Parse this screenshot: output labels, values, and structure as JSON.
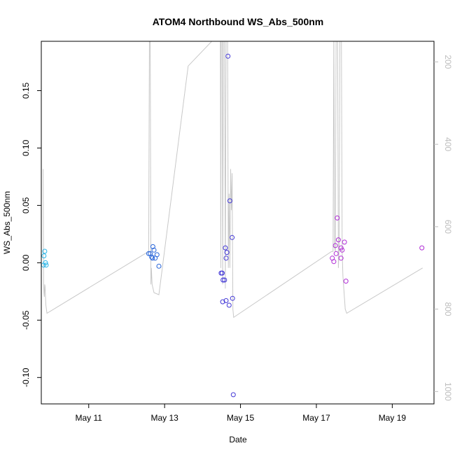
{
  "chart_data": {
    "type": "scatter",
    "title": "ATOM4 Northbound WS_Abs_500nm",
    "xlabel": "Date",
    "ylabel": "WS_Abs_500nm",
    "x_ticks": [
      "May 11",
      "May 13",
      "May 15",
      "May 17",
      "May 19"
    ],
    "x_tick_days": [
      11,
      13,
      15,
      17,
      19
    ],
    "xlim_days": [
      9.75,
      20.1
    ],
    "ylim": [
      -0.123,
      0.193
    ],
    "y_ticks": [
      "-0.10",
      "-0.05",
      "0.00",
      "0.05",
      "0.10",
      "0.15"
    ],
    "y_tick_values": [
      -0.1,
      -0.05,
      0.0,
      0.05,
      0.1,
      0.15
    ],
    "right_axis": {
      "ticks": [
        "200",
        "400",
        "600",
        "800",
        "1000"
      ],
      "tick_values": [
        200,
        400,
        600,
        800,
        1000
      ],
      "lim": [
        1030,
        150
      ],
      "color": "#bdbdbd",
      "note": "inverted secondary axis"
    },
    "grid": false,
    "series": [
      {
        "color": "#2bb6e8",
        "points": [
          {
            "x": 9.82,
            "y": 0.006
          },
          {
            "x": 9.84,
            "y": 0.01
          },
          {
            "x": 9.81,
            "y": -0.002
          },
          {
            "x": 9.88,
            "y": -0.002
          },
          {
            "x": 9.86,
            "y": 0.0
          }
        ]
      },
      {
        "color": "#2563d9",
        "points": [
          {
            "x": 12.58,
            "y": 0.008
          },
          {
            "x": 12.62,
            "y": 0.008
          },
          {
            "x": 12.66,
            "y": 0.005
          },
          {
            "x": 12.69,
            "y": 0.014
          },
          {
            "x": 12.72,
            "y": 0.011
          },
          {
            "x": 12.68,
            "y": 0.004
          },
          {
            "x": 12.75,
            "y": 0.004
          },
          {
            "x": 12.8,
            "y": 0.007
          },
          {
            "x": 12.85,
            "y": -0.003
          }
        ]
      },
      {
        "color": "#4338d6",
        "points": [
          {
            "x": 14.67,
            "y": 0.18
          },
          {
            "x": 14.72,
            "y": 0.054
          },
          {
            "x": 14.78,
            "y": 0.022
          },
          {
            "x": 14.6,
            "y": 0.013
          },
          {
            "x": 14.64,
            "y": 0.009
          },
          {
            "x": 14.62,
            "y": 0.004
          },
          {
            "x": 14.49,
            "y": -0.009
          },
          {
            "x": 14.52,
            "y": -0.009
          },
          {
            "x": 14.54,
            "y": -0.015
          },
          {
            "x": 14.58,
            "y": -0.015
          },
          {
            "x": 14.53,
            "y": -0.034
          },
          {
            "x": 14.62,
            "y": -0.033
          },
          {
            "x": 14.7,
            "y": -0.037
          },
          {
            "x": 14.79,
            "y": -0.031
          },
          {
            "x": 14.81,
            "y": -0.115
          }
        ]
      },
      {
        "color": "#b02cd6",
        "points": [
          {
            "x": 17.55,
            "y": 0.039
          },
          {
            "x": 17.58,
            "y": 0.02
          },
          {
            "x": 17.74,
            "y": 0.018
          },
          {
            "x": 17.5,
            "y": 0.015
          },
          {
            "x": 17.65,
            "y": 0.013
          },
          {
            "x": 17.68,
            "y": 0.011
          },
          {
            "x": 17.52,
            "y": 0.008
          },
          {
            "x": 17.42,
            "y": 0.004
          },
          {
            "x": 17.65,
            "y": 0.004
          },
          {
            "x": 17.46,
            "y": 0.001
          },
          {
            "x": 17.78,
            "y": -0.016
          },
          {
            "x": 19.78,
            "y": 0.013
          }
        ]
      }
    ],
    "background_line": {
      "color": "#c8c8c8",
      "axis": "right",
      "points": [
        {
          "x": 9.8,
          "y": 460
        },
        {
          "x": 9.81,
          "y": 740
        },
        {
          "x": 9.82,
          "y": 760
        },
        {
          "x": 9.83,
          "y": 770
        },
        {
          "x": 9.84,
          "y": 740
        },
        {
          "x": 9.85,
          "y": 745
        },
        {
          "x": 9.87,
          "y": 790
        },
        {
          "x": 9.9,
          "y": 810
        },
        {
          "x": 12.58,
          "y": 660
        },
        {
          "x": 12.6,
          "y": 130
        },
        {
          "x": 12.62,
          "y": 130
        },
        {
          "x": 12.64,
          "y": 740
        },
        {
          "x": 12.65,
          "y": 700
        },
        {
          "x": 12.67,
          "y": 740
        },
        {
          "x": 12.72,
          "y": 760
        },
        {
          "x": 12.85,
          "y": 765
        },
        {
          "x": 13.62,
          "y": 210
        },
        {
          "x": 14.45,
          "y": 130
        },
        {
          "x": 14.47,
          "y": 130
        },
        {
          "x": 14.48,
          "y": 700
        },
        {
          "x": 14.49,
          "y": 130
        },
        {
          "x": 14.52,
          "y": 130
        },
        {
          "x": 14.53,
          "y": 740
        },
        {
          "x": 14.55,
          "y": 130
        },
        {
          "x": 14.58,
          "y": 130
        },
        {
          "x": 14.6,
          "y": 750
        },
        {
          "x": 14.62,
          "y": 130
        },
        {
          "x": 14.66,
          "y": 130
        },
        {
          "x": 14.68,
          "y": 700
        },
        {
          "x": 14.7,
          "y": 520
        },
        {
          "x": 14.72,
          "y": 700
        },
        {
          "x": 14.74,
          "y": 460
        },
        {
          "x": 14.76,
          "y": 560
        },
        {
          "x": 14.78,
          "y": 470
        },
        {
          "x": 14.8,
          "y": 800
        },
        {
          "x": 14.82,
          "y": 820
        },
        {
          "x": 17.4,
          "y": 660
        },
        {
          "x": 17.44,
          "y": 660
        },
        {
          "x": 17.46,
          "y": 130
        },
        {
          "x": 17.48,
          "y": 650
        },
        {
          "x": 17.5,
          "y": 660
        },
        {
          "x": 17.52,
          "y": 130
        },
        {
          "x": 17.56,
          "y": 130
        },
        {
          "x": 17.58,
          "y": 700
        },
        {
          "x": 17.6,
          "y": 650
        },
        {
          "x": 17.62,
          "y": 130
        },
        {
          "x": 17.66,
          "y": 130
        },
        {
          "x": 17.68,
          "y": 660
        },
        {
          "x": 17.7,
          "y": 720
        },
        {
          "x": 17.76,
          "y": 800
        },
        {
          "x": 17.8,
          "y": 810
        },
        {
          "x": 19.8,
          "y": 700
        }
      ]
    }
  }
}
